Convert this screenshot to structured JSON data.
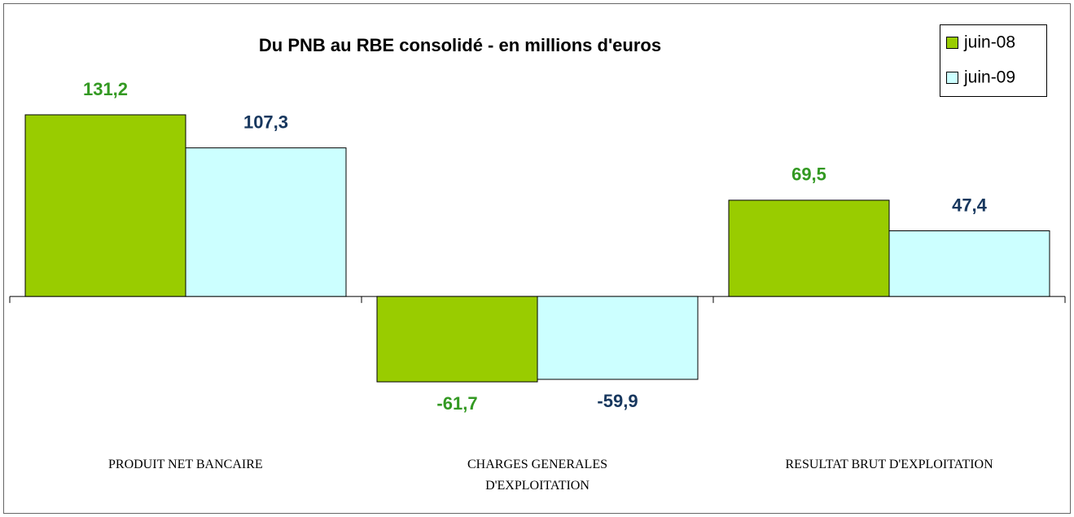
{
  "chart_data": {
    "type": "bar",
    "title": "Du PNB au RBE consolidé - en millions d'euros",
    "categories": [
      "PRODUIT NET BANCAIRE",
      "CHARGES GENERALES D'EXPLOITATION",
      "RESULTAT BRUT D'EXPLOITATION"
    ],
    "series": [
      {
        "name": "juin-08",
        "color": "#99cc00",
        "label_color": "#339922",
        "values": [
          131.2,
          -61.7,
          69.5
        ],
        "value_labels": [
          "131,2",
          "-61,7",
          "69,5"
        ]
      },
      {
        "name": "juin-09",
        "color": "#ccffff",
        "label_color": "#17375e",
        "values": [
          107.3,
          -59.9,
          47.4
        ],
        "value_labels": [
          "107,3",
          "-59,9",
          "47,4"
        ]
      }
    ],
    "legend": "top-right"
  }
}
